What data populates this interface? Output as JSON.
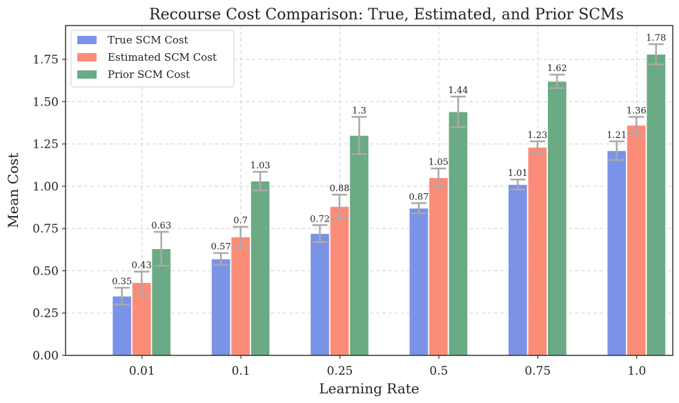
{
  "chart_data": {
    "type": "bar",
    "title": "Recourse Cost Comparison: True, Estimated, and Prior SCMs",
    "xlabel": "Learning Rate",
    "ylabel": "Mean Cost",
    "categories": [
      "0.01",
      "0.1",
      "0.25",
      "0.5",
      "0.75",
      "1.0"
    ],
    "ylim": [
      0,
      1.95
    ],
    "yticks": [
      "0.00",
      "0.25",
      "0.50",
      "0.75",
      "1.00",
      "1.25",
      "1.50",
      "1.75"
    ],
    "ytick_values": [
      0,
      0.25,
      0.5,
      0.75,
      1.0,
      1.25,
      1.5,
      1.75
    ],
    "grid": true,
    "legend_position": "top-left",
    "series": [
      {
        "name": "True SCM Cost",
        "color": "#7b93e6",
        "values": [
          0.35,
          0.57,
          0.72,
          0.87,
          1.01,
          1.21
        ],
        "labels": [
          "0.35",
          "0.57",
          "0.72",
          "0.87",
          "1.01",
          "1.21"
        ],
        "errors": [
          0.05,
          0.035,
          0.05,
          0.03,
          0.03,
          0.055
        ]
      },
      {
        "name": "Estimated SCM Cost",
        "color": "#fb8c77",
        "values": [
          0.43,
          0.7,
          0.88,
          1.05,
          1.23,
          1.36
        ],
        "labels": [
          "0.43",
          "0.7",
          "0.88",
          "1.05",
          "1.23",
          "1.36"
        ],
        "errors": [
          0.065,
          0.06,
          0.07,
          0.055,
          0.035,
          0.05
        ]
      },
      {
        "name": "Prior SCM Cost",
        "color": "#6aaa84",
        "values": [
          0.63,
          1.03,
          1.3,
          1.44,
          1.62,
          1.78
        ],
        "labels": [
          "0.63",
          "1.03",
          "1.3",
          "1.44",
          "1.62",
          "1.78"
        ],
        "errors": [
          0.1,
          0.055,
          0.11,
          0.09,
          0.04,
          0.06
        ]
      }
    ]
  }
}
